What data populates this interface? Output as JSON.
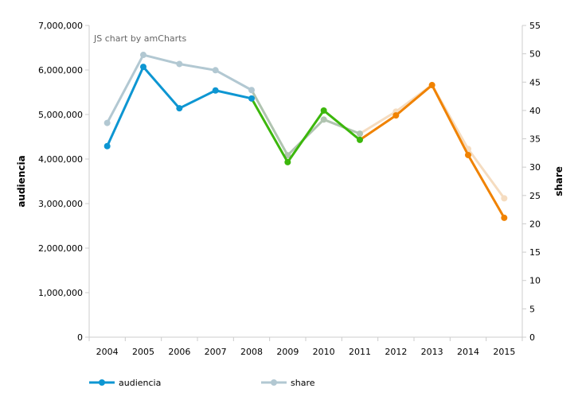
{
  "chart_data": {
    "type": "line",
    "credit": "JS chart by amCharts",
    "categories": [
      "2004",
      "2005",
      "2006",
      "2007",
      "2008",
      "2009",
      "2010",
      "2011",
      "2012",
      "2013",
      "2014",
      "2015"
    ],
    "ylabel": "audiencia",
    "y2label": "share",
    "ylim": [
      0,
      7000000
    ],
    "y2lim": [
      0,
      55
    ],
    "yticks": [
      "0",
      "1,000,000",
      "2,000,000",
      "3,000,000",
      "4,000,000",
      "5,000,000",
      "6,000,000",
      "7,000,000"
    ],
    "y2ticks": [
      "0",
      "5",
      "10",
      "15",
      "20",
      "25",
      "30",
      "35",
      "40",
      "45",
      "50",
      "55"
    ],
    "series": [
      {
        "name": "audiencia",
        "axis": "left",
        "color": "#0d96d2",
        "values": [
          4290000,
          6070000,
          5140000,
          5540000,
          5360000,
          3930000,
          5090000,
          4430000,
          4980000,
          5660000,
          4090000,
          2680000
        ],
        "segment_colors": [
          "#0d96d2",
          "#0d96d2",
          "#0d96d2",
          "#0d96d2",
          "#0d96d2",
          "#3cb70c",
          "#3cb70c",
          "#3cb70c",
          "#f08200",
          "#f08200",
          "#f08200",
          "#f08200"
        ]
      },
      {
        "name": "share",
        "axis": "right",
        "color": "#b2c8d2",
        "values": [
          37.8,
          49.8,
          48.2,
          47.1,
          43.6,
          32.1,
          38.4,
          35.9,
          39.8,
          44.5,
          33.2,
          24.5
        ],
        "segment_colors": [
          "#b2c8d2",
          "#b2c8d2",
          "#b2c8d2",
          "#b2c8d2",
          "#b2c8d2",
          "#b0c4b0",
          "#b0c4b0",
          "#b0c4b0",
          "#f5dcc0",
          "#f5dcc0",
          "#f5dcc0",
          "#f5dcc0"
        ]
      }
    ],
    "legend": "bottom-left"
  }
}
